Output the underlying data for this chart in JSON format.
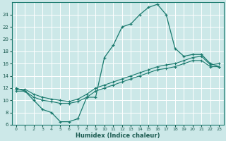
{
  "xlabel": "Humidex (Indice chaleur)",
  "bg_color": "#cce8e8",
  "line_color": "#1a7a6e",
  "grid_color": "#ffffff",
  "xlim": [
    -0.5,
    23.5
  ],
  "ylim": [
    6,
    26
  ],
  "xticks": [
    0,
    1,
    2,
    3,
    4,
    5,
    6,
    7,
    8,
    9,
    10,
    11,
    12,
    13,
    14,
    15,
    16,
    17,
    18,
    19,
    20,
    21,
    22,
    23
  ],
  "yticks": [
    6,
    8,
    10,
    12,
    14,
    16,
    18,
    20,
    22,
    24
  ],
  "curve1_x": [
    0,
    1,
    2,
    3,
    4,
    5,
    6,
    7,
    8,
    9,
    10,
    11,
    12,
    13,
    14,
    15,
    16,
    17,
    18,
    19,
    20,
    21,
    22,
    23
  ],
  "curve1_y": [
    12.0,
    11.5,
    10.0,
    8.5,
    8.0,
    6.5,
    6.5,
    7.0,
    10.5,
    10.5,
    17.0,
    19.0,
    22.0,
    22.5,
    24.0,
    25.2,
    25.7,
    24.0,
    18.5,
    17.2,
    17.5,
    17.5,
    16.0,
    15.5
  ],
  "curve2_x": [
    0,
    1,
    2,
    3,
    4,
    5,
    6,
    7,
    8,
    9,
    10,
    11,
    12,
    13,
    14,
    15,
    16,
    17,
    18,
    19,
    20,
    21,
    22,
    23
  ],
  "curve2_y": [
    11.8,
    11.8,
    11.0,
    10.5,
    10.2,
    10.0,
    9.8,
    10.2,
    11.0,
    12.0,
    12.5,
    13.0,
    13.5,
    14.0,
    14.5,
    15.0,
    15.5,
    15.8,
    16.0,
    16.5,
    17.0,
    17.2,
    15.8,
    16.0
  ],
  "curve3_x": [
    0,
    1,
    2,
    3,
    4,
    5,
    6,
    7,
    8,
    9,
    10,
    11,
    12,
    13,
    14,
    15,
    16,
    17,
    18,
    19,
    20,
    21,
    22,
    23
  ],
  "curve3_y": [
    11.5,
    11.5,
    10.5,
    10.0,
    9.8,
    9.5,
    9.5,
    9.8,
    10.5,
    11.5,
    12.0,
    12.5,
    13.0,
    13.5,
    14.0,
    14.5,
    15.0,
    15.2,
    15.5,
    16.0,
    16.5,
    16.5,
    15.5,
    15.5
  ]
}
